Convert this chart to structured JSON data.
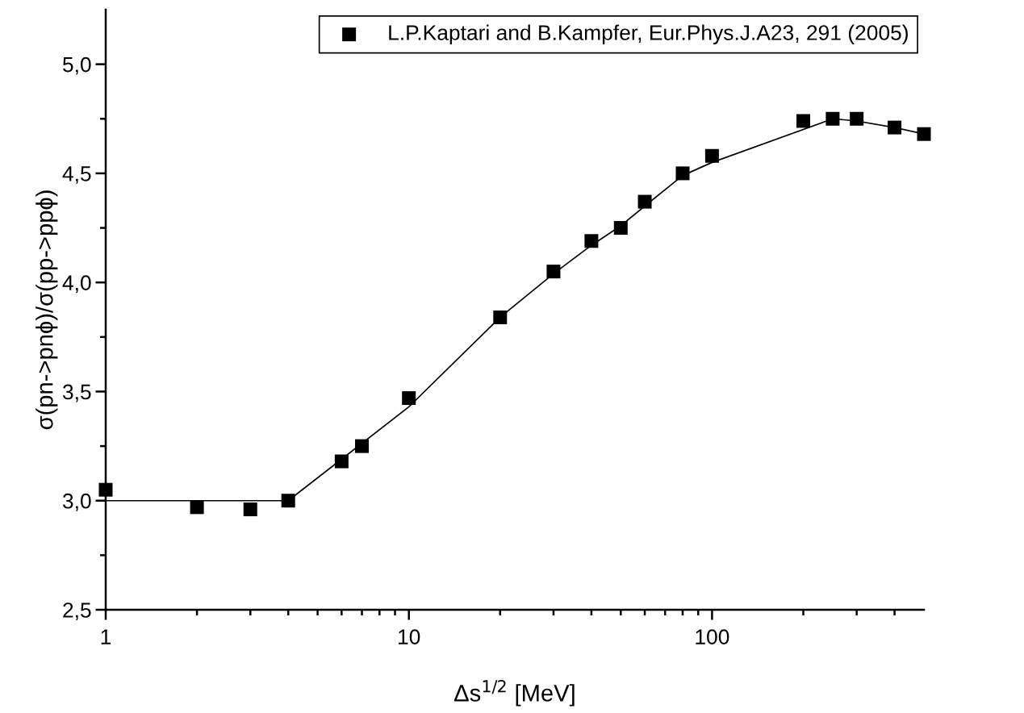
{
  "chart_data": {
    "type": "scatter",
    "xlabel": "Δs$^{1/2}$ [MeV]",
    "ylabel": "σ(pn->pnϕ)/σ(pp->ppϕ)",
    "log": "x",
    "xlim": [
      1,
      500
    ],
    "ylim": [
      2.5,
      5.25
    ],
    "xticks": [
      1,
      {
        "value": 2,
        "label": null
      },
      {
        "value": 3,
        "label": null
      },
      {
        "value": 4,
        "label": null
      },
      {
        "value": 5,
        "label": null
      },
      {
        "value": 6,
        "label": null
      },
      {
        "value": 7,
        "label": null
      },
      {
        "value": 8,
        "label": null
      },
      {
        "value": 9,
        "label": null
      },
      10,
      {
        "value": 20,
        "label": null
      },
      {
        "value": 30,
        "label": null
      },
      {
        "value": 40,
        "label": null
      },
      {
        "value": 50,
        "label": null
      },
      {
        "value": 60,
        "label": null
      },
      {
        "value": 70,
        "label": null
      },
      {
        "value": 80,
        "label": null
      },
      {
        "value": 90,
        "label": null
      },
      100,
      {
        "value": 200,
        "label": null
      },
      {
        "value": 300,
        "label": null
      },
      {
        "value": 400,
        "label": null
      }
    ],
    "yticks": [
      {
        "value": 2.5,
        "label": "2,5"
      },
      {
        "value": 2.75,
        "label": null
      },
      {
        "value": 3.0,
        "label": "3,0"
      },
      {
        "value": 3.25,
        "label": null
      },
      {
        "value": 3.5,
        "label": "3,5"
      },
      {
        "value": 3.75,
        "label": null
      },
      {
        "value": 4.0,
        "label": "4,0"
      },
      {
        "value": 4.25,
        "label": null
      },
      {
        "value": 4.5,
        "label": "4,5"
      },
      {
        "value": 4.75,
        "label": null
      },
      {
        "value": 5.0,
        "label": "5,0"
      }
    ],
    "legend": "top right",
    "grid": false,
    "series": [
      {
        "name": "L.P.Kaptari and B.Kampfer, Eur.Phys.J.A23, 291 (2005)",
        "marker": "square",
        "color": "#000000",
        "x": [
          1,
          2,
          3,
          4,
          6,
          7,
          10,
          20,
          30,
          40,
          50,
          60,
          80,
          100,
          200,
          250,
          300,
          400,
          500
        ],
        "values": [
          3.05,
          2.97,
          2.96,
          3.0,
          3.18,
          3.25,
          3.47,
          3.84,
          4.05,
          4.19,
          4.25,
          4.37,
          4.5,
          4.58,
          4.74,
          4.75,
          4.75,
          4.71,
          4.68
        ]
      },
      {
        "type": "line",
        "marker": "none",
        "line_style": "solid",
        "color": "#000000",
        "x": [
          1,
          4,
          10,
          20,
          30,
          40,
          50,
          60,
          80,
          100,
          250,
          300,
          400,
          500
        ],
        "values": [
          3.0,
          3.0,
          3.43,
          3.84,
          4.04,
          4.17,
          4.26,
          4.35,
          4.49,
          4.55,
          4.75,
          4.74,
          4.71,
          4.68
        ]
      }
    ]
  }
}
